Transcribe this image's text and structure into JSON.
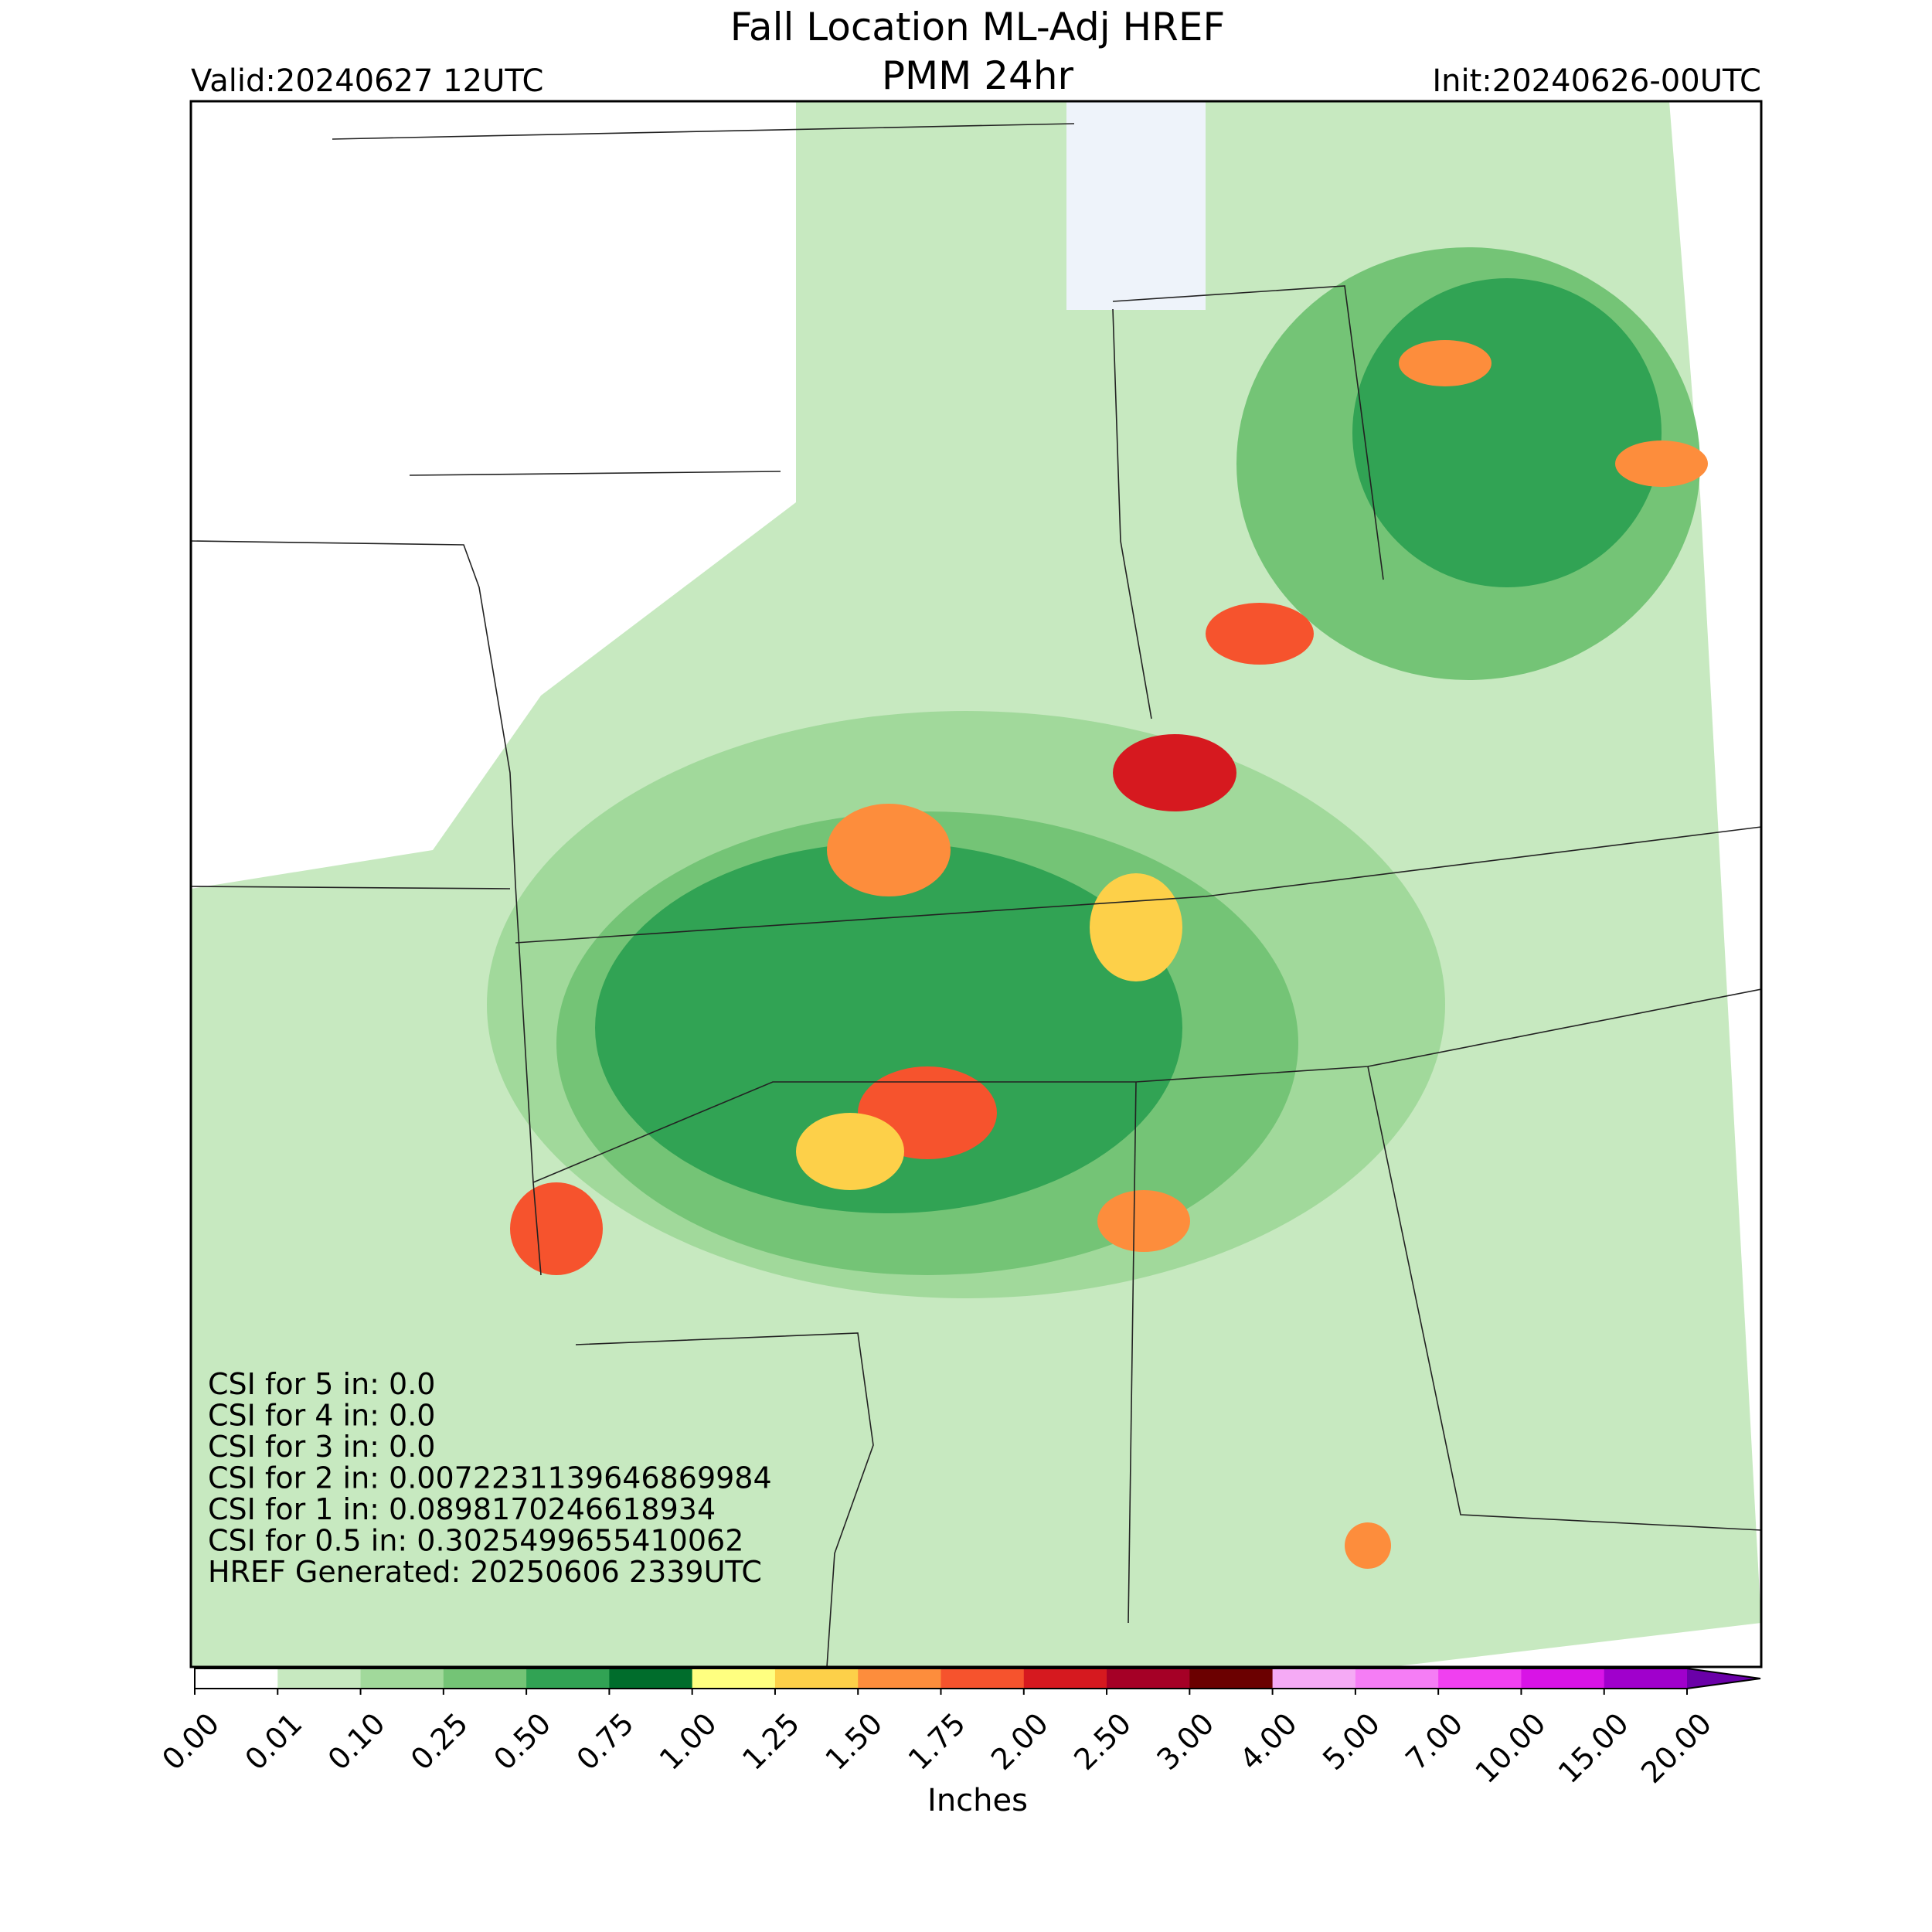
{
  "header": {
    "title_line1": "Fall Location ML-Adj HREF",
    "title_line2": "PMM 24hr",
    "valid": "Valid:20240627 12UTC",
    "init": "Init:20240626-00UTC"
  },
  "annotations": [
    "CSI for 5 in: 0.0",
    "CSI for 4 in: 0.0",
    "CSI for 3 in: 0.0",
    "CSI for 2 in: 0.007223113964686998​4",
    "CSI for 1 in: 0.0898170246618934",
    "CSI for 0.5 in: 0.3025499655410062",
    "HREF Generated: 20250606 2339UTC"
  ],
  "colorbar": {
    "label": "Inches",
    "levels": [
      {
        "value": 0,
        "label": "0.00"
      },
      {
        "value": 0.01,
        "label": "0.01"
      },
      {
        "value": 0.1,
        "label": "0.10"
      },
      {
        "value": 0.25,
        "label": "0.25"
      },
      {
        "value": 0.5,
        "label": "0.50"
      },
      {
        "value": 0.75,
        "label": "0.75"
      },
      {
        "value": 1,
        "label": "1.00"
      },
      {
        "value": 1.25,
        "label": "1.25"
      },
      {
        "value": 1.5,
        "label": "1.50"
      },
      {
        "value": 1.75,
        "label": "1.75"
      },
      {
        "value": 2,
        "label": "2.00"
      },
      {
        "value": 2.5,
        "label": "2.50"
      },
      {
        "value": 3,
        "label": "3.00"
      },
      {
        "value": 4,
        "label": "4.00"
      },
      {
        "value": 5,
        "label": "5.00"
      },
      {
        "value": 7,
        "label": "7.00"
      },
      {
        "value": 10,
        "label": "10.00"
      },
      {
        "value": 15,
        "label": "15.00"
      },
      {
        "value": 20,
        "label": "20.00"
      }
    ],
    "colors": [
      "#ffffff",
      "#c7e9c0",
      "#a1d99b",
      "#74c476",
      "#31a354",
      "#006d2c",
      "#ffff80",
      "#fdd049",
      "#fd8d3c",
      "#f6532d",
      "#d6191f",
      "#a50026",
      "#6b0000",
      "#f5aaf5",
      "#f57df5",
      "#f040f0",
      "#d814e6",
      "#a000cc"
    ],
    "extend_color": "#6a00a8"
  }
}
